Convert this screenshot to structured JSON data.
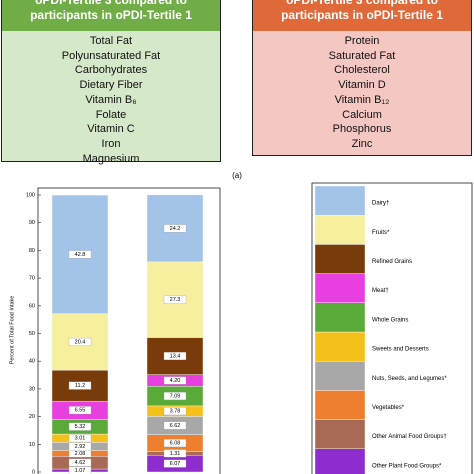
{
  "panels": [
    {
      "header_lines": [
        "oPDI-Tertile 3 compared to",
        "participants in oPDI-Tertile 1"
      ],
      "items": [
        "Total Fat",
        "Polyunsaturated Fat",
        "Carbohydrates",
        "Dietary Fiber",
        "Vitamin B₆",
        "Folate",
        "Vitamin C",
        "Iron",
        "Magnesium"
      ]
    },
    {
      "header_lines": [
        "oPDI-Tertile 3 compared to",
        "participants in oPDI-Tertile 1"
      ],
      "items": [
        "Protein",
        "Saturated Fat",
        "Cholesterol",
        "Vitamin D",
        "Vitamin B₁₂",
        "Calcium",
        "Phosphorus",
        "Zinc"
      ]
    }
  ],
  "caption": "(a)",
  "chart_data": {
    "type": "stacked_bar",
    "ylabel": "Percent of Total Food Intake",
    "categories": [
      null,
      null
    ],
    "ylim": [
      0,
      100
    ],
    "yticks": [
      0,
      10,
      20,
      30,
      40,
      50,
      60,
      70,
      80,
      90,
      100
    ],
    "series": [
      {
        "name": "Other Plant Food Groups*",
        "color": "#8e2ccf",
        "values": [
          1.07,
          6.07
        ],
        "value_labels": [
          "1.07",
          "6.07"
        ]
      },
      {
        "name": "Other Animal Food Groups†",
        "color": "#a96a55",
        "values": [
          4.62,
          1.31
        ],
        "value_labels": [
          "4.62",
          "1.31"
        ]
      },
      {
        "name": "Vegetables*",
        "color": "#ee7f2e",
        "values": [
          2.08,
          6.08
        ],
        "value_labels": [
          "2.08",
          "6.08"
        ]
      },
      {
        "name": "Nuts, Seeds, and Legumes*",
        "color": "#a8a8a8",
        "values": [
          2.92,
          6.62
        ],
        "value_labels": [
          "2.92",
          "6.62"
        ]
      },
      {
        "name": "Sweets and Desserts",
        "color": "#f4c01a",
        "values": [
          3.01,
          3.78
        ],
        "value_labels": [
          "3.01",
          "3.78"
        ]
      },
      {
        "name": "Whole Grains",
        "color": "#5aaa3a",
        "values": [
          5.32,
          7.09
        ],
        "value_labels": [
          "5.32",
          "7.09"
        ]
      },
      {
        "name": "Meat†",
        "color": "#e83fe0",
        "values": [
          6.55,
          4.2
        ],
        "value_labels": [
          "6.55",
          "4.20"
        ]
      },
      {
        "name": "Refined Grains",
        "color": "#7a3b0a",
        "values": [
          11.2,
          13.4
        ],
        "value_labels": [
          "11.2",
          "13.4"
        ]
      },
      {
        "name": "Fruits*",
        "color": "#f6ef9e",
        "values": [
          20.4,
          27.3
        ],
        "value_labels": [
          "20.4",
          "27.3"
        ]
      },
      {
        "name": "Dairy†",
        "color": "#a3c4e8",
        "values": [
          42.8,
          24.2
        ],
        "value_labels": [
          "42.8",
          "24.2"
        ]
      }
    ]
  }
}
